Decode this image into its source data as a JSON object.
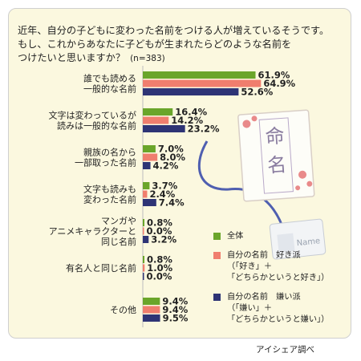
{
  "question": {
    "lines": [
      "近年、自分の子どもに変わった名前をつける人が増えているそうです。",
      "もし、これからあなたに子どもが生まれたらどのような名前を",
      "つけたいと思いますか？"
    ],
    "n_label": "(n=383)"
  },
  "chart_data": {
    "type": "bar",
    "orientation": "horizontal",
    "title": "",
    "xlabel": "",
    "ylabel": "",
    "xlim": [
      0,
      70
    ],
    "grid": false,
    "legend_position": "bottom-right",
    "categories": [
      [
        "誰でも読める",
        "一般的な名前"
      ],
      [
        "文字は変わっているが",
        "読みは一般的な名前"
      ],
      [
        "親族の名から",
        "一部取った名前"
      ],
      [
        "文字も読みも",
        "変わった名前"
      ],
      [
        "マンガや",
        "アニメキャラクターと",
        "同じ名前"
      ],
      [
        "有名人と同じ名前"
      ],
      [
        "その他"
      ]
    ],
    "series": [
      {
        "name": "全体",
        "color": "#6aa52a",
        "values": [
          61.9,
          16.4,
          7.0,
          3.7,
          0.8,
          0.8,
          9.4
        ],
        "labels": [
          "61.9%",
          "16.4%",
          "7.0%",
          "3.7%",
          "0.8%",
          "0.8%",
          "9.4%"
        ]
      },
      {
        "name": "自分の名前　好き派",
        "color": "#f07e6e",
        "values": [
          64.9,
          14.2,
          8.0,
          2.4,
          0.0,
          1.0,
          9.4
        ],
        "labels": [
          "64.9%",
          "14.2%",
          "8.0%",
          "2.4%",
          "0.0%",
          "1.0%",
          "9.4%"
        ]
      },
      {
        "name": "自分の名前　嫌い派",
        "color": "#2e3475",
        "values": [
          52.6,
          23.2,
          4.2,
          7.4,
          3.2,
          0.0,
          9.5
        ],
        "labels": [
          "52.6%",
          "23.2%",
          "4.2%",
          "7.4%",
          "3.2%",
          "0.0%",
          "9.5%"
        ]
      }
    ],
    "legend": [
      {
        "lines": [
          "全体"
        ]
      },
      {
        "lines": [
          "自分の名前　好き派",
          "（「好き」＋",
          "「どちらかというと好き」）"
        ]
      },
      {
        "lines": [
          "自分の名前　嫌い派",
          "（「嫌い」＋",
          "「どちらかというと嫌い」）"
        ]
      }
    ]
  },
  "illustration": {
    "seal_chars": [
      "命",
      "名"
    ],
    "tag_text": "Name",
    "colors": {
      "cord": "#4f5fb0",
      "petal": "#e98a8a",
      "paper": "#fdfdf8"
    }
  },
  "source": "アイシェア調べ"
}
